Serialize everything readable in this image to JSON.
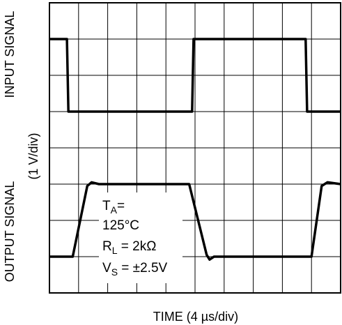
{
  "chart_data": {
    "type": "line",
    "xlabel": "TIME (4 µs/div)",
    "ylabel_top": "INPUT SIGNAL",
    "ylabel_middle": "(1 V/div)",
    "ylabel_bottom": "OUTPUT SIGNAL",
    "grid": true,
    "x_divisions": 10,
    "y_divisions": 8,
    "xlim": [
      0,
      10
    ],
    "ylim": [
      0,
      8
    ],
    "series": [
      {
        "points": [
          [
            0,
            7.0
          ],
          [
            0.6,
            7.0
          ],
          [
            0.65,
            5.0
          ],
          [
            4.9,
            5.0
          ],
          [
            4.95,
            7.0
          ],
          [
            8.8,
            7.0
          ],
          [
            8.85,
            5.0
          ],
          [
            10,
            5.0
          ]
        ]
      },
      {
        "points": [
          [
            0,
            1.0
          ],
          [
            0.8,
            1.0
          ],
          [
            1.3,
            2.95
          ],
          [
            1.45,
            3.05
          ],
          [
            1.7,
            3.0
          ],
          [
            4.8,
            3.0
          ],
          [
            5.4,
            1.05
          ],
          [
            5.5,
            0.92
          ],
          [
            5.65,
            1.0
          ],
          [
            9.0,
            1.0
          ],
          [
            9.35,
            2.95
          ],
          [
            9.55,
            3.05
          ],
          [
            10,
            3.0
          ]
        ]
      }
    ],
    "annotation": {
      "ta_main": "T",
      "ta_sub": "A",
      "ta_suffix": "=",
      "ta_value": "125°C",
      "rl_main": "R",
      "rl_sub": "L",
      "rl_suffix": " = 2kΩ",
      "vs_main": "V",
      "vs_sub": "S",
      "vs_suffix": " = ±2.5V"
    }
  }
}
